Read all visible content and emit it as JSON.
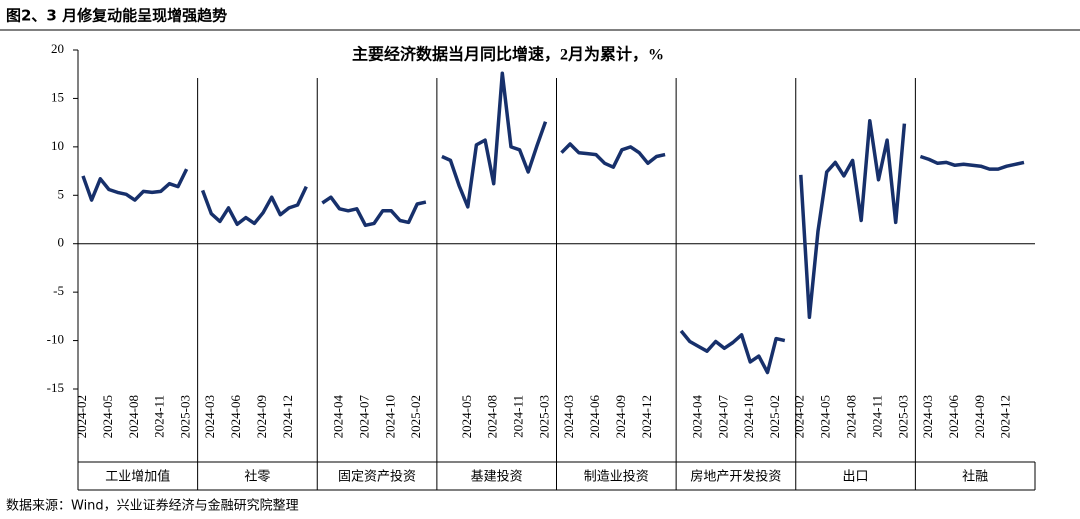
{
  "header": "图2、3 月修复动能呈现增强趋势",
  "source": "数据来源：Wind，兴业证券经济与金融研究院整理",
  "chart_data": {
    "type": "line",
    "title": "主要经济数据当月同比增速，2月为累计，%",
    "color": "#17306b",
    "ylim": [
      -15,
      20
    ],
    "yticks": [
      20,
      15,
      10,
      5,
      0,
      -5,
      -10,
      -15
    ],
    "panels": [
      {
        "name": "工业增加值",
        "categories": [
          "2024-02",
          null,
          null,
          "2024-05",
          null,
          null,
          "2024-08",
          null,
          null,
          "2024-11",
          null,
          null,
          "2025-03"
        ],
        "values": [
          7.0,
          4.5,
          6.7,
          5.6,
          5.3,
          5.1,
          4.5,
          5.4,
          5.3,
          5.4,
          6.2,
          5.9,
          7.7
        ]
      },
      {
        "name": "社零",
        "categories": [
          null,
          "2024-03",
          null,
          null,
          "2024-06",
          null,
          null,
          "2024-09",
          null,
          null,
          "2024-12",
          null,
          null
        ],
        "values": [
          5.5,
          3.1,
          2.3,
          3.7,
          2.0,
          2.7,
          2.1,
          3.2,
          4.8,
          3.0,
          3.7,
          4.0,
          5.9
        ]
      },
      {
        "name": "固定资产投资",
        "categories": [
          null,
          null,
          "2024-04",
          null,
          null,
          "2024-07",
          null,
          null,
          "2024-10",
          null,
          null,
          "2025-02",
          null
        ],
        "values": [
          4.2,
          4.8,
          3.6,
          3.4,
          3.6,
          1.9,
          2.1,
          3.4,
          3.4,
          2.4,
          2.2,
          4.1,
          4.3
        ]
      },
      {
        "name": "基建投资",
        "categories": [
          null,
          null,
          null,
          "2024-05",
          null,
          null,
          "2024-08",
          null,
          null,
          "2024-11",
          null,
          null,
          "2025-03"
        ],
        "values": [
          9.0,
          8.6,
          6.0,
          3.8,
          10.2,
          10.7,
          6.2,
          17.6,
          10.0,
          9.7,
          7.4,
          10.1,
          12.6
        ]
      },
      {
        "name": "制造业投资",
        "categories": [
          null,
          "2024-03",
          null,
          null,
          "2024-06",
          null,
          null,
          "2024-09",
          null,
          null,
          "2024-12",
          null,
          null
        ],
        "values": [
          9.4,
          10.3,
          9.4,
          9.3,
          9.2,
          8.3,
          7.9,
          9.7,
          10.0,
          9.4,
          8.3,
          9.0,
          9.2
        ]
      },
      {
        "name": "房地产开发投资",
        "categories": [
          null,
          null,
          "2024-04",
          null,
          null,
          "2024-07",
          null,
          null,
          "2024-10",
          null,
          null,
          "2025-02",
          null
        ],
        "values": [
          -9.0,
          -10.1,
          -10.6,
          -11.1,
          -10.1,
          -10.8,
          -10.2,
          -9.4,
          -12.2,
          -11.6,
          -13.3,
          -9.8,
          -10.0
        ]
      },
      {
        "name": "出口",
        "categories": [
          "2024-02",
          null,
          null,
          "2024-05",
          null,
          null,
          "2024-08",
          null,
          null,
          "2024-11",
          null,
          null,
          "2025-03"
        ],
        "values": [
          7.1,
          -7.6,
          1.3,
          7.4,
          8.4,
          7.0,
          8.6,
          2.4,
          12.7,
          6.6,
          10.7,
          2.2,
          12.4
        ]
      },
      {
        "name": "社融",
        "categories": [
          null,
          "2024-03",
          null,
          null,
          "2024-06",
          null,
          null,
          "2024-09",
          null,
          null,
          "2024-12",
          null,
          null
        ],
        "values": [
          9.0,
          8.7,
          8.3,
          8.4,
          8.1,
          8.2,
          8.1,
          8.0,
          7.7,
          7.7,
          8.0,
          8.2,
          8.4
        ]
      }
    ]
  }
}
